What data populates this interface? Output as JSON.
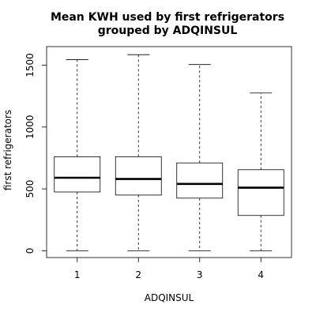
{
  "chart_data": {
    "type": "boxplot",
    "title_lines": [
      "Mean KWH used by first refrigerators",
      "grouped by ADQINSUL"
    ],
    "xlabel": "ADQINSUL",
    "ylabel": "first refrigerators",
    "categories": [
      "1",
      "2",
      "3",
      "4"
    ],
    "y_ticks": [
      0,
      500,
      1000,
      1500
    ],
    "y_tick_labels": [
      "0",
      "500",
      "1000",
      "1500"
    ],
    "ylim": [
      -55,
      1650
    ],
    "grid": false,
    "boxes": [
      {
        "category": "1",
        "whisker_low": 0,
        "q1": 475,
        "median": 590,
        "q3": 760,
        "whisker_high": 1545
      },
      {
        "category": "2",
        "whisker_low": 0,
        "q1": 450,
        "median": 580,
        "q3": 760,
        "whisker_high": 1585
      },
      {
        "category": "3",
        "whisker_low": 0,
        "q1": 425,
        "median": 540,
        "q3": 710,
        "whisker_high": 1505
      },
      {
        "category": "4",
        "whisker_low": 0,
        "q1": 285,
        "median": 510,
        "q3": 655,
        "whisker_high": 1275
      }
    ]
  }
}
